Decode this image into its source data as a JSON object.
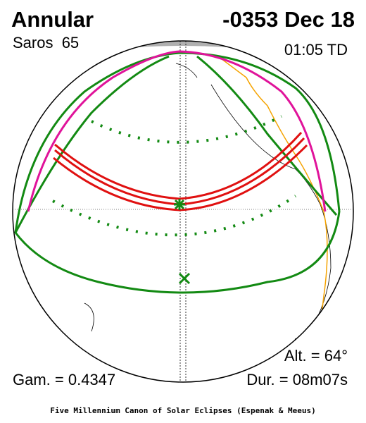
{
  "header": {
    "type": "Annular",
    "date": "-0353 Dec 18",
    "saros": "Saros  65",
    "time": "01:05 TD"
  },
  "stats": {
    "altitude": "Alt. = 64°",
    "gamma": "Gam. = 0.4347",
    "duration": "Dur. = 08m07s"
  },
  "footer": "Five Millennium Canon of Solar Eclipses (Espenak & Meeus)"
}
